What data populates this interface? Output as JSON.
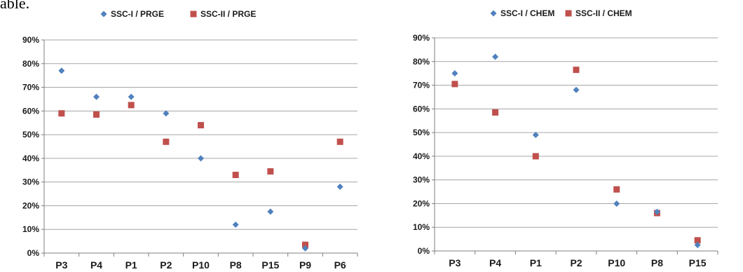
{
  "page": {
    "fragment_text": "able."
  },
  "colors": {
    "series1": "#4F81BD",
    "series2": "#C0504D",
    "grid": "#A6A6A6",
    "axis": "#7F7F7F"
  },
  "chart_data": [
    {
      "type": "scatter",
      "title": "",
      "xlabel": "",
      "ylabel": "",
      "categories": [
        "P3",
        "P4",
        "P1",
        "P2",
        "P10",
        "P8",
        "P15",
        "P9",
        "P6"
      ],
      "y_ticks": [
        "0%",
        "10%",
        "20%",
        "30%",
        "40%",
        "50%",
        "60%",
        "70%",
        "80%",
        "90%"
      ],
      "ylim": [
        0,
        90
      ],
      "grid": true,
      "legend_position": "top",
      "series": [
        {
          "name": "SSC-I / PRGE",
          "marker": "diamond",
          "values": [
            77,
            66,
            66,
            59,
            40,
            12,
            17.5,
            2,
            28
          ]
        },
        {
          "name": "SSC-II / PRGE",
          "marker": "square",
          "values": [
            59,
            58.5,
            62.5,
            47,
            54,
            33,
            34.5,
            3.5,
            47
          ]
        }
      ]
    },
    {
      "type": "scatter",
      "title": "",
      "xlabel": "",
      "ylabel": "",
      "categories": [
        "P3",
        "P4",
        "P1",
        "P2",
        "P10",
        "P8",
        "P15"
      ],
      "y_ticks": [
        "0%",
        "10%",
        "20%",
        "30%",
        "40%",
        "50%",
        "60%",
        "70%",
        "80%",
        "90%"
      ],
      "ylim": [
        0,
        90
      ],
      "grid": true,
      "legend_position": "top",
      "series": [
        {
          "name": "SSC-I / CHEM",
          "marker": "diamond",
          "values": [
            75,
            82,
            49,
            68,
            20,
            16.5,
            2.5
          ]
        },
        {
          "name": "SSC-II / CHEM",
          "marker": "square",
          "values": [
            70.5,
            58.5,
            40,
            76.5,
            26,
            16,
            4.5
          ]
        }
      ]
    }
  ]
}
